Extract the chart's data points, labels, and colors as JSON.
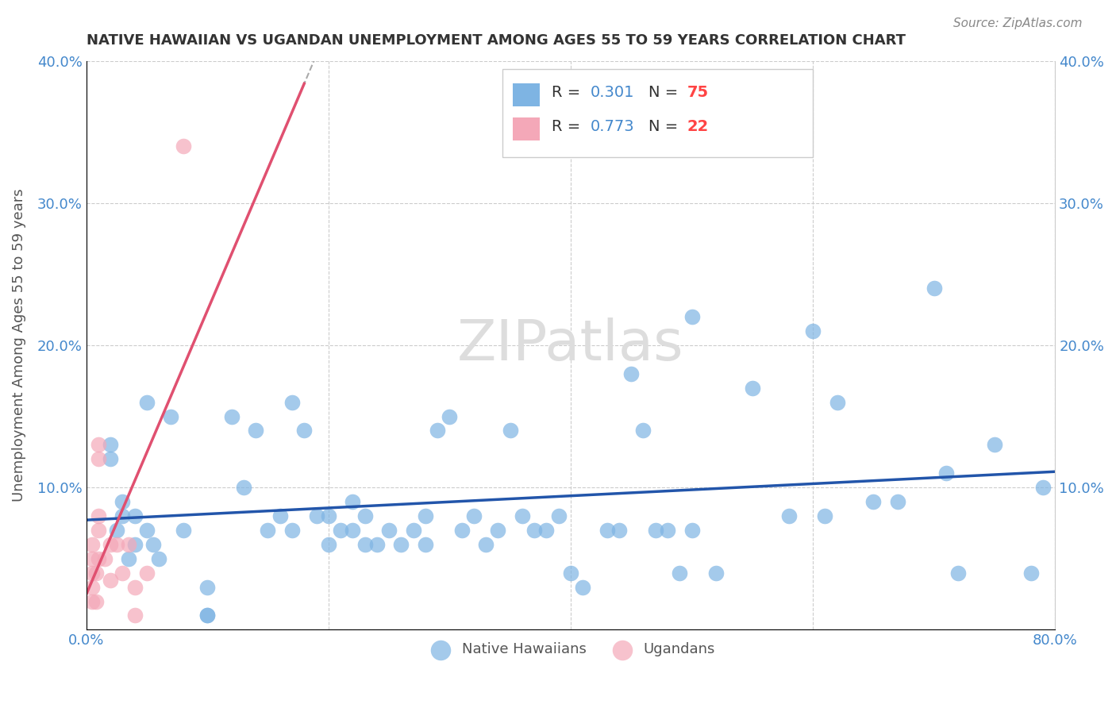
{
  "title": "NATIVE HAWAIIAN VS UGANDAN UNEMPLOYMENT AMONG AGES 55 TO 59 YEARS CORRELATION CHART",
  "source": "Source: ZipAtlas.com",
  "xlabel": "",
  "ylabel": "Unemployment Among Ages 55 to 59 years",
  "xlim": [
    0.0,
    0.8
  ],
  "ylim": [
    0.0,
    0.4
  ],
  "xticks": [
    0.0,
    0.1,
    0.2,
    0.3,
    0.4,
    0.5,
    0.6,
    0.7,
    0.8
  ],
  "yticks": [
    0.0,
    0.1,
    0.2,
    0.3,
    0.4
  ],
  "xtick_labels": [
    "0.0%",
    "",
    "",
    "",
    "",
    "",
    "",
    "",
    "80.0%"
  ],
  "ytick_labels": [
    "",
    "10.0%",
    "20.0%",
    "30.0%",
    "40.0%"
  ],
  "blue_color": "#7EB4E3",
  "pink_color": "#F4A8B8",
  "blue_line_color": "#2255AA",
  "pink_line_color": "#E05070",
  "grid_color": "#CCCCCC",
  "background_color": "#FFFFFF",
  "title_color": "#333333",
  "axis_label_color": "#555555",
  "tick_label_color": "#4488CC",
  "legend_R_color": "#4488CC",
  "legend_N_color": "#FF4444",
  "r_blue": 0.301,
  "n_blue": 75,
  "r_pink": 0.773,
  "n_pink": 22,
  "blue_scatter_x": [
    0.02,
    0.02,
    0.025,
    0.03,
    0.03,
    0.035,
    0.04,
    0.04,
    0.05,
    0.05,
    0.055,
    0.06,
    0.07,
    0.08,
    0.1,
    0.1,
    0.1,
    0.12,
    0.13,
    0.14,
    0.15,
    0.16,
    0.17,
    0.17,
    0.18,
    0.19,
    0.2,
    0.2,
    0.21,
    0.22,
    0.22,
    0.23,
    0.23,
    0.24,
    0.25,
    0.26,
    0.27,
    0.28,
    0.28,
    0.29,
    0.3,
    0.31,
    0.32,
    0.33,
    0.34,
    0.35,
    0.36,
    0.37,
    0.38,
    0.39,
    0.4,
    0.41,
    0.43,
    0.44,
    0.45,
    0.46,
    0.47,
    0.48,
    0.49,
    0.5,
    0.5,
    0.52,
    0.55,
    0.58,
    0.6,
    0.61,
    0.62,
    0.65,
    0.67,
    0.7,
    0.71,
    0.72,
    0.75,
    0.78,
    0.79
  ],
  "blue_scatter_y": [
    0.12,
    0.13,
    0.07,
    0.08,
    0.09,
    0.05,
    0.08,
    0.06,
    0.07,
    0.16,
    0.06,
    0.05,
    0.15,
    0.07,
    0.01,
    0.01,
    0.03,
    0.15,
    0.1,
    0.14,
    0.07,
    0.08,
    0.16,
    0.07,
    0.14,
    0.08,
    0.06,
    0.08,
    0.07,
    0.07,
    0.09,
    0.06,
    0.08,
    0.06,
    0.07,
    0.06,
    0.07,
    0.08,
    0.06,
    0.14,
    0.15,
    0.07,
    0.08,
    0.06,
    0.07,
    0.14,
    0.08,
    0.07,
    0.07,
    0.08,
    0.04,
    0.03,
    0.07,
    0.07,
    0.18,
    0.14,
    0.07,
    0.07,
    0.04,
    0.22,
    0.07,
    0.04,
    0.17,
    0.08,
    0.21,
    0.08,
    0.16,
    0.09,
    0.09,
    0.24,
    0.11,
    0.04,
    0.13,
    0.04,
    0.1
  ],
  "pink_scatter_x": [
    0.005,
    0.005,
    0.005,
    0.005,
    0.005,
    0.008,
    0.008,
    0.01,
    0.01,
    0.01,
    0.01,
    0.01,
    0.015,
    0.02,
    0.02,
    0.025,
    0.03,
    0.035,
    0.04,
    0.04,
    0.05,
    0.08
  ],
  "pink_scatter_y": [
    0.03,
    0.04,
    0.05,
    0.06,
    0.02,
    0.04,
    0.02,
    0.05,
    0.07,
    0.08,
    0.12,
    0.13,
    0.05,
    0.06,
    0.035,
    0.06,
    0.04,
    0.06,
    0.03,
    0.01,
    0.04,
    0.34
  ],
  "watermark": "ZIPatlas",
  "watermark_color": "#DDDDDD"
}
